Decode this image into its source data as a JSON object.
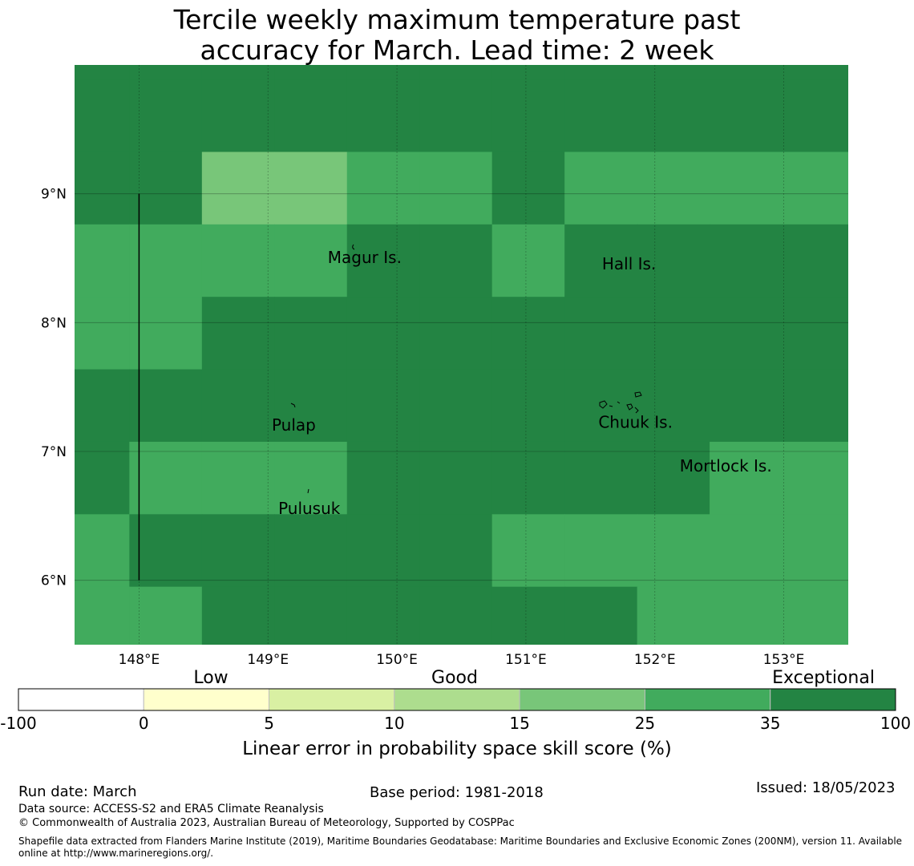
{
  "title": {
    "line1": "Tercile weekly maximum temperature past",
    "line2": "accuracy for March. Lead time: 2 week"
  },
  "map": {
    "lon_range": [
      147.5,
      153.5
    ],
    "lat_range": [
      5.5,
      10.0
    ],
    "lon_ticks": [
      148,
      149,
      150,
      151,
      152,
      153
    ],
    "lon_tick_labels": [
      "148°E",
      "149°E",
      "150°E",
      "151°E",
      "152°E",
      "153°E"
    ],
    "lat_ticks": [
      6,
      7,
      8,
      9
    ],
    "lat_tick_labels": [
      "6°N",
      "7°N",
      "8°N",
      "9°N"
    ],
    "cell_size_deg": 0.5625,
    "grid_lon_start": 146.8,
    "grid_lat_top": 10.45,
    "grid_values": [
      [
        40,
        40,
        40,
        40,
        40,
        40,
        40,
        40,
        40,
        40,
        40,
        40
      ],
      [
        40,
        40,
        40,
        40,
        40,
        40,
        40,
        40,
        40,
        40,
        40,
        40
      ],
      [
        40,
        40,
        40,
        20,
        20,
        30,
        30,
        40,
        30,
        30,
        30,
        30
      ],
      [
        30,
        30,
        30,
        30,
        30,
        40,
        40,
        30,
        40,
        40,
        40,
        40
      ],
      [
        30,
        30,
        30,
        40,
        40,
        40,
        40,
        40,
        40,
        40,
        40,
        40
      ],
      [
        40,
        40,
        40,
        40,
        40,
        40,
        40,
        40,
        40,
        40,
        40,
        40
      ],
      [
        40,
        40,
        30,
        30,
        30,
        40,
        40,
        40,
        40,
        40,
        30,
        30
      ],
      [
        30,
        30,
        40,
        40,
        40,
        40,
        40,
        30,
        30,
        30,
        30,
        30
      ],
      [
        30,
        30,
        30,
        40,
        40,
        40,
        40,
        40,
        40,
        30,
        30,
        30
      ]
    ],
    "dateline_lon": 148.0,
    "dateline_lat_range": [
      6.0,
      9.0
    ],
    "places": [
      {
        "name": "Magur Is.",
        "lon": 149.75,
        "lat": 8.6
      },
      {
        "name": "Hall Is.",
        "lon": 151.8,
        "lat": 8.55
      },
      {
        "name": "Pulap",
        "lon": 149.2,
        "lat": 7.3
      },
      {
        "name": "Chuuk Is.",
        "lon": 151.85,
        "lat": 7.32
      },
      {
        "name": "Mortlock Is.",
        "lon": 152.55,
        "lat": 6.98
      },
      {
        "name": "Pulusuk",
        "lon": 149.32,
        "lat": 6.65
      }
    ]
  },
  "legend": {
    "category_low": "Low",
    "category_good": "Good",
    "category_exceptional": "Exceptional",
    "boundaries": [
      "-100",
      "0",
      "5",
      "10",
      "15",
      "25",
      "35",
      "100"
    ],
    "bins": [
      {
        "from": -100,
        "to": 0,
        "color": "#ffffff"
      },
      {
        "from": 0,
        "to": 5,
        "color": "#ffffcc"
      },
      {
        "from": 5,
        "to": 10,
        "color": "#d9f0a3"
      },
      {
        "from": 10,
        "to": 15,
        "color": "#addd8e"
      },
      {
        "from": 15,
        "to": 25,
        "color": "#78c679"
      },
      {
        "from": 25,
        "to": 35,
        "color": "#41ab5d"
      },
      {
        "from": 35,
        "to": 100,
        "color": "#238443"
      }
    ],
    "axis_label": "Linear error in probability space skill score (%)"
  },
  "footer": {
    "run_date": "Run date: March",
    "base_period": "Base period: 1981-2018",
    "issued": "Issued: 18/05/2023",
    "data_source": "Data source: ACCESS-S2 and ERA5 Climate Reanalysis",
    "copyright": "© Commonwealth of Australia 2023, Australian Bureau of Meteorology, Supported by COSPPac",
    "shapefile": "Shapefile data extracted from Flanders Marine Institute (2019), Maritime Boundaries Geodatabase: Maritime Boundaries and Exclusive Economic Zones (200NM), version 11. Available online at http://www.marineregions.org/."
  }
}
